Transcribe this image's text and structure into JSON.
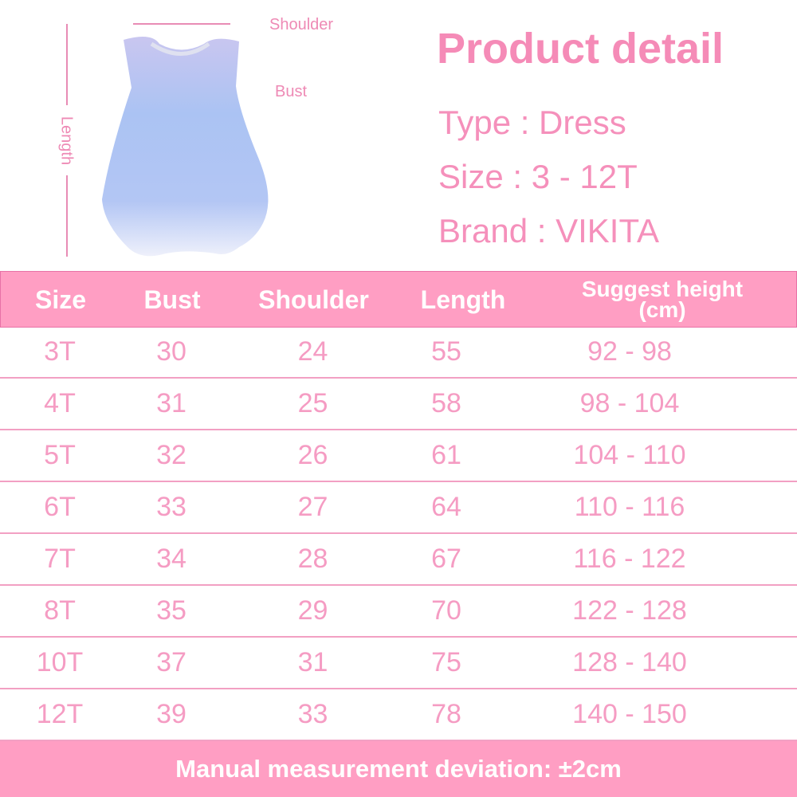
{
  "diagram": {
    "labels": {
      "shoulder": "Shoulder",
      "bust": "Bust",
      "length": "Length"
    },
    "line_color": "#e88cb5",
    "dress_colors": [
      "#c9cdf5",
      "#a9c2f2",
      "#eef0fb"
    ]
  },
  "product": {
    "title": "Product detail",
    "type": "Type : Dress",
    "size": "Size : 3 - 12T",
    "brand": "Brand : VIKITA"
  },
  "table": {
    "headers": [
      "Size",
      "Bust",
      "Shoulder",
      "Length",
      "Suggest height",
      "(cm)"
    ],
    "rows": [
      [
        "3T",
        "30",
        "24",
        "55",
        "92 - 98"
      ],
      [
        "4T",
        "31",
        "25",
        "58",
        "98 - 104"
      ],
      [
        "5T",
        "32",
        "26",
        "61",
        "104 - 110"
      ],
      [
        "6T",
        "33",
        "27",
        "64",
        "110 - 116"
      ],
      [
        "7T",
        "34",
        "28",
        "67",
        "116 - 122"
      ],
      [
        "8T",
        "35",
        "29",
        "70",
        "122 - 128"
      ],
      [
        "10T",
        "37",
        "31",
        "75",
        "128 - 140"
      ],
      [
        "12T",
        "39",
        "33",
        "78",
        "140 - 150"
      ]
    ]
  },
  "footer": {
    "note": "Manual measurement deviation: ±2cm"
  },
  "colors": {
    "accent": "#ff9ec3",
    "text": "#f28fba",
    "border": "#e872a6"
  }
}
